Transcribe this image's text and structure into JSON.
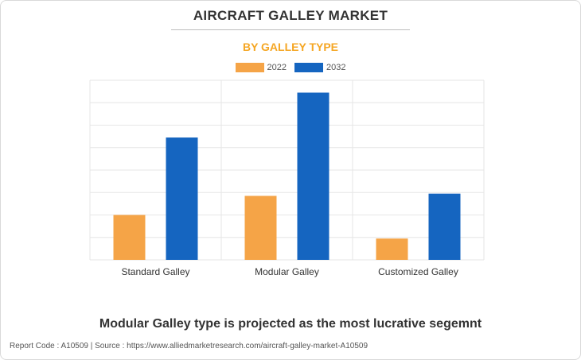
{
  "header": {
    "title": "AIRCRAFT GALLEY MARKET",
    "subtitle": "BY GALLEY TYPE"
  },
  "footer": {
    "note": "Modular Galley type is projected as the most lucrative segemnt",
    "source": "Report Code : A10509  |  Source : https://www.alliedmarketresearch.com/aircraft-galley-market-A10509"
  },
  "colors": {
    "accent": "#f5a623",
    "series_2022": "#f5a447",
    "series_2032": "#1565c0",
    "grid": "#e6e6e6"
  },
  "chart_data": {
    "type": "bar",
    "categories": [
      "Standard Galley",
      "Modular Galley",
      "Customized Galley"
    ],
    "series": [
      {
        "name": "2022",
        "values": [
          2.0,
          2.85,
          0.95
        ]
      },
      {
        "name": "2032",
        "values": [
          5.45,
          7.45,
          2.95
        ]
      }
    ],
    "ylim": [
      0,
      8
    ],
    "grid": true,
    "legend": "top-center",
    "title": "",
    "xlabel": "",
    "ylabel": ""
  }
}
